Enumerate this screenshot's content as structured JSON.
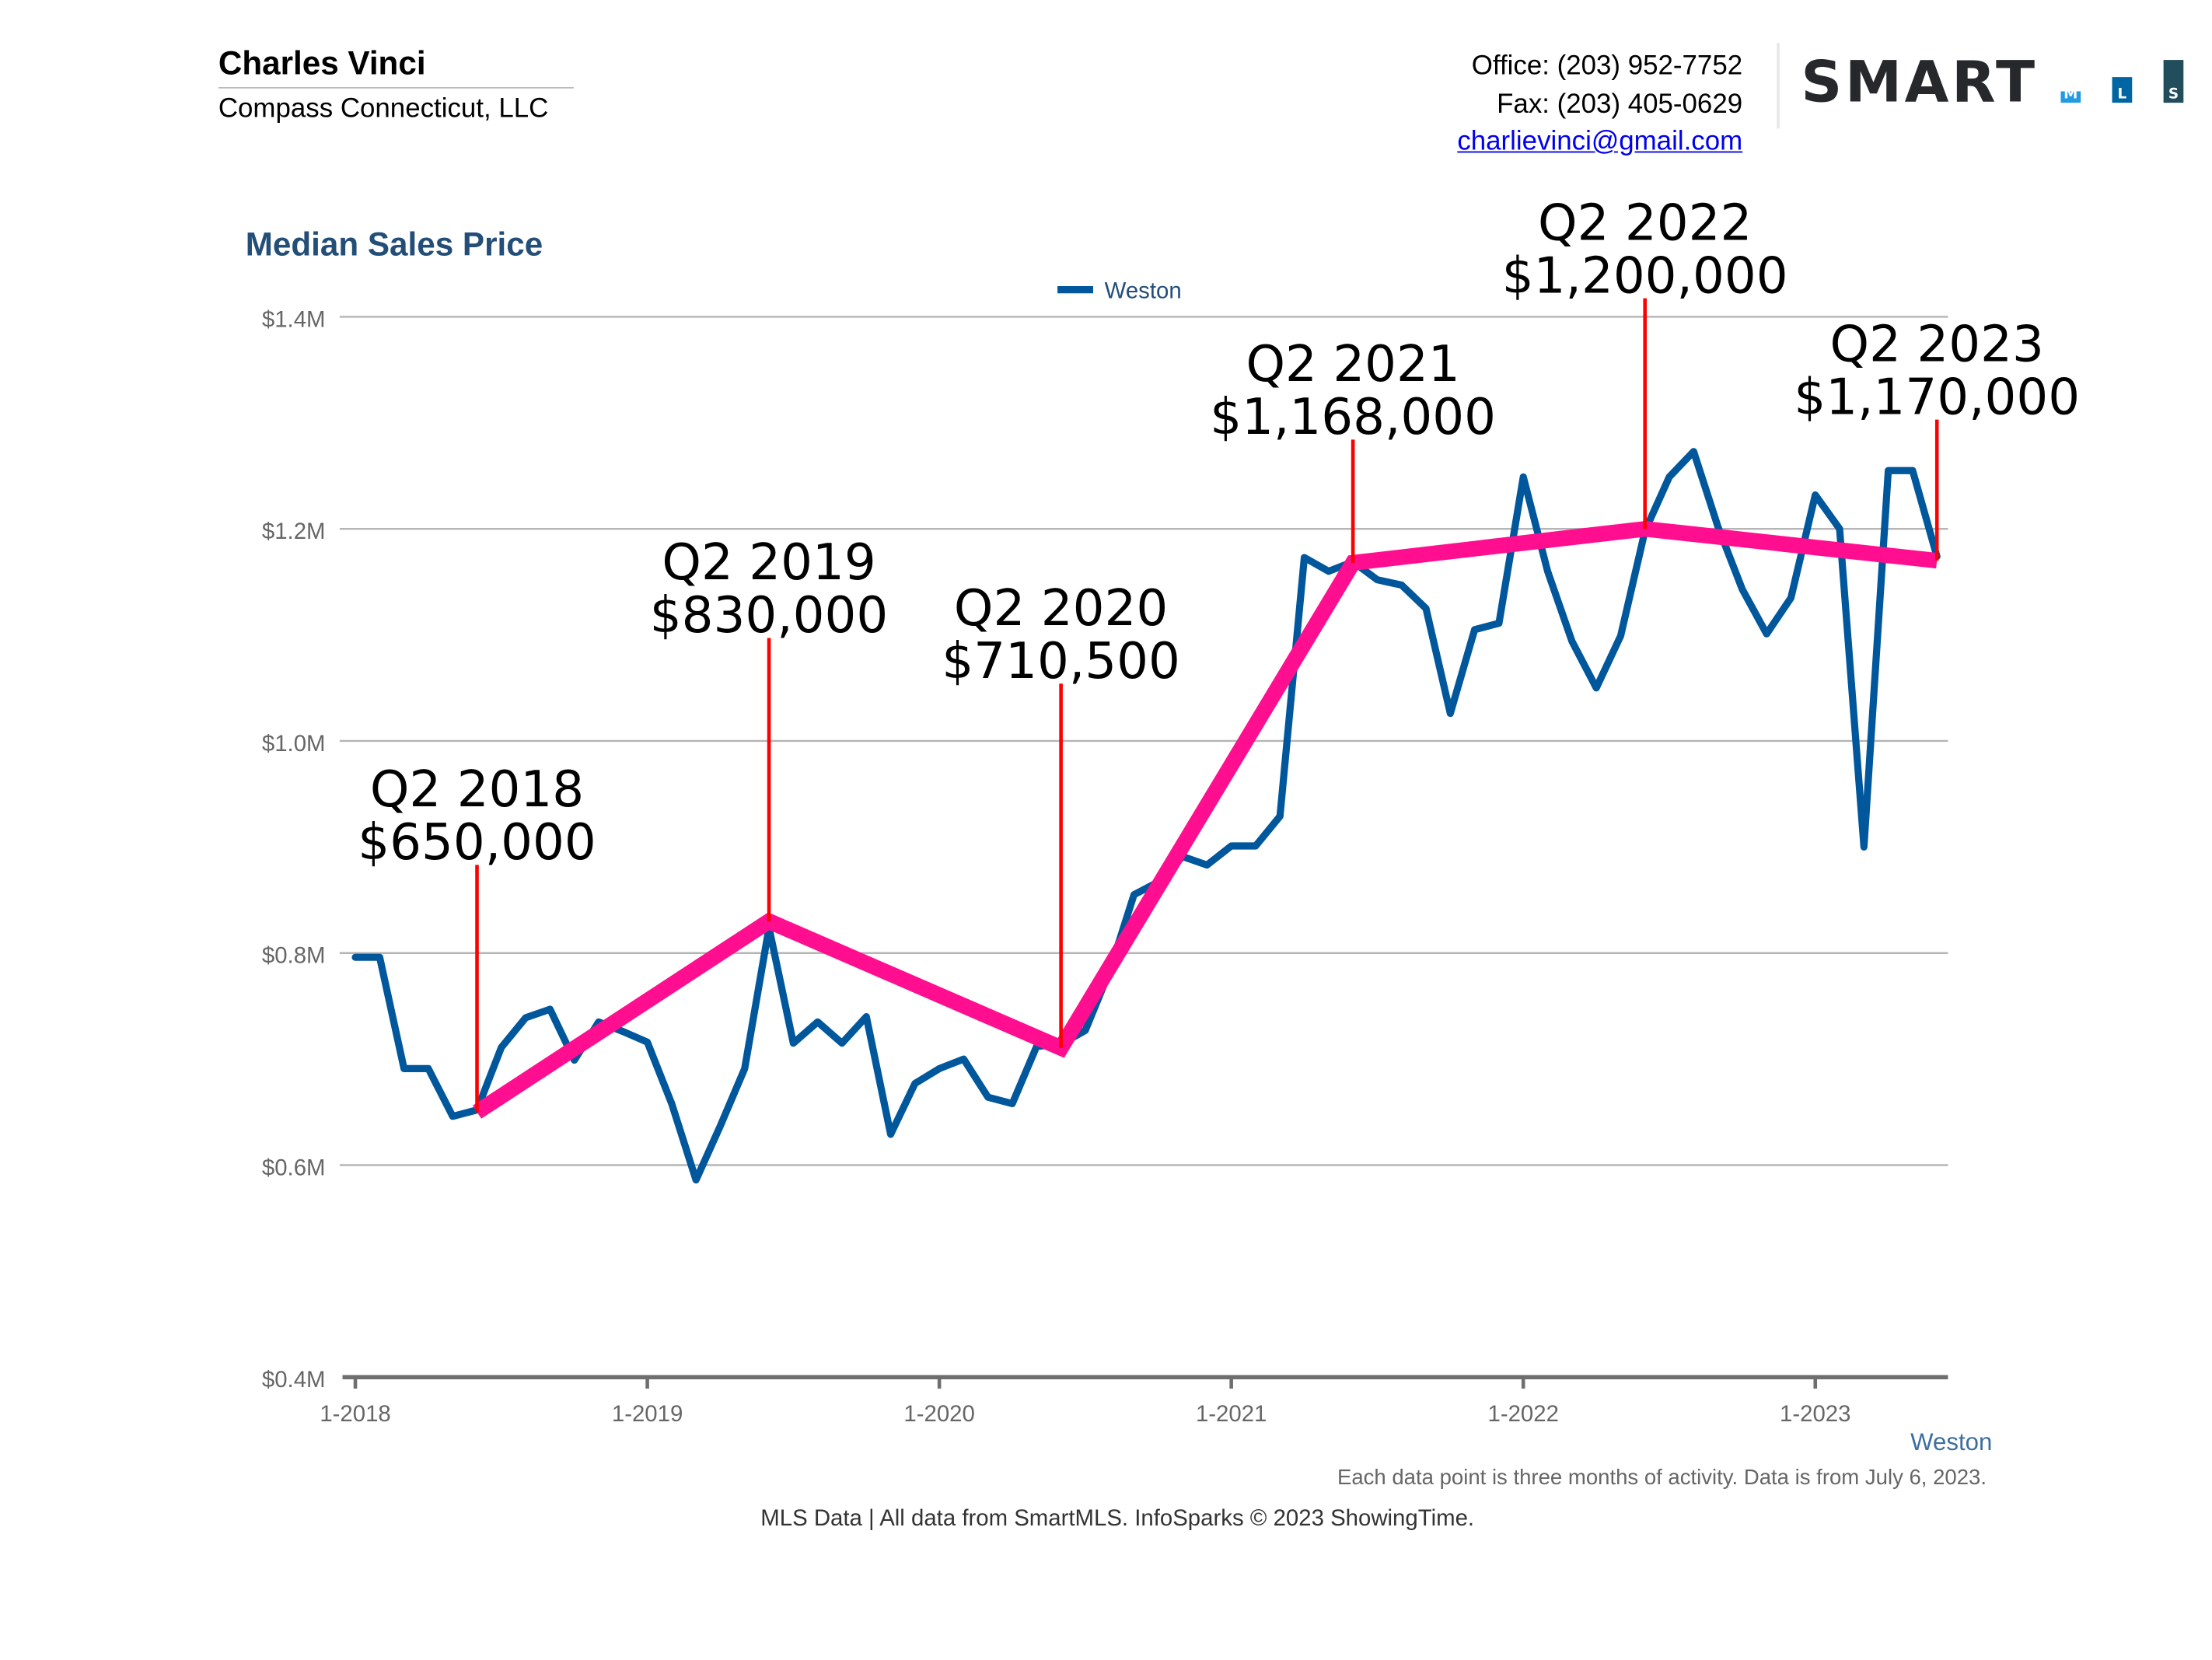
{
  "header": {
    "agent_name": "Charles Vinci",
    "company": "Compass Connecticut, LLC",
    "office": "Office: (203) 952-7752",
    "fax": "Fax: (203) 405-0629",
    "email": "charlievinci@gmail.com",
    "logo_text": "SMART",
    "logo_letters": [
      "M",
      "L",
      "S"
    ],
    "logo_colors": [
      "#229be0",
      "#0066a3",
      "#214d5c"
    ]
  },
  "footer": {
    "note": "Each data point is three months of activity. Data is from July 6, 2023.",
    "credit": "MLS Data | All data from SmartMLS. InfoSparks © 2023 ShowingTime.",
    "series_label": "Weston"
  },
  "chart_data": {
    "type": "line",
    "title": "Median Sales Price",
    "xlabel": "",
    "ylabel": "",
    "ylim": [
      400000,
      1400000
    ],
    "yticks": [
      400000,
      600000,
      800000,
      1000000,
      1200000,
      1400000
    ],
    "ytick_labels": [
      "$0.4M",
      "$0.6M",
      "$0.8M",
      "$1.0M",
      "$1.2M",
      "$1.4M"
    ],
    "xtick_labels": [
      "1-2018",
      "1-2019",
      "1-2020",
      "1-2021",
      "1-2022",
      "1-2023"
    ],
    "grid": true,
    "legend_position": "top-center",
    "colors": {
      "series": "#00579c",
      "trend": "#ff0f8f",
      "leader": "#ff0000",
      "title": "#234e78"
    },
    "x": [
      "1-2018",
      "2-2018",
      "3-2018",
      "4-2018",
      "5-2018",
      "6-2018",
      "7-2018",
      "8-2018",
      "9-2018",
      "10-2018",
      "11-2018",
      "12-2018",
      "1-2019",
      "2-2019",
      "3-2019",
      "4-2019",
      "5-2019",
      "6-2019",
      "7-2019",
      "8-2019",
      "9-2019",
      "10-2019",
      "11-2019",
      "12-2019",
      "1-2020",
      "2-2020",
      "3-2020",
      "4-2020",
      "5-2020",
      "6-2020",
      "7-2020",
      "8-2020",
      "9-2020",
      "10-2020",
      "11-2020",
      "12-2020",
      "1-2021",
      "2-2021",
      "3-2021",
      "4-2021",
      "5-2021",
      "6-2021",
      "7-2021",
      "8-2021",
      "9-2021",
      "10-2021",
      "11-2021",
      "12-2021",
      "1-2022",
      "2-2022",
      "3-2022",
      "4-2022",
      "5-2022",
      "6-2022",
      "7-2022",
      "8-2022",
      "9-2022",
      "10-2022",
      "11-2022",
      "12-2022",
      "1-2023",
      "2-2023",
      "3-2023",
      "4-2023",
      "5-2023",
      "6-2023"
    ],
    "series": [
      {
        "name": "Weston",
        "values": [
          796000,
          796000,
          691000,
          691000,
          646000,
          652000,
          711000,
          739000,
          747000,
          699000,
          735000,
          726000,
          716000,
          658000,
          586000,
          637000,
          691000,
          824000,
          715000,
          735000,
          715000,
          740000,
          629000,
          677000,
          691000,
          700000,
          664000,
          658000,
          712000,
          714000,
          727000,
          783000,
          855000,
          867000,
          891000,
          883000,
          901000,
          901000,
          929000,
          1173000,
          1160000,
          1169000,
          1152000,
          1147000,
          1125000,
          1026000,
          1105000,
          1111000,
          1249000,
          1160000,
          1094000,
          1050000,
          1099000,
          1198000,
          1249000,
          1273000,
          1202000,
          1143000,
          1101000,
          1135000,
          1232000,
          1200000,
          900000,
          1255000,
          1255000,
          1174000
        ]
      }
    ],
    "annotations": [
      {
        "label": "Q2 2018",
        "value_label": "$650,000",
        "x": "6-2018",
        "value": 650000
      },
      {
        "label": "Q2 2019",
        "value_label": "$830,000",
        "x": "6-2019",
        "value": 830000
      },
      {
        "label": "Q2 2020",
        "value_label": "$710,500",
        "x": "6-2020",
        "value": 710500
      },
      {
        "label": "Q2 2021",
        "value_label": "$1,168,000",
        "x": "6-2021",
        "value": 1168000
      },
      {
        "label": "Q2 2022",
        "value_label": "$1,200,000",
        "x": "6-2022",
        "value": 1200000
      },
      {
        "label": "Q2 2023",
        "value_label": "$1,170,000",
        "x": "6-2023",
        "value": 1170000
      }
    ]
  }
}
